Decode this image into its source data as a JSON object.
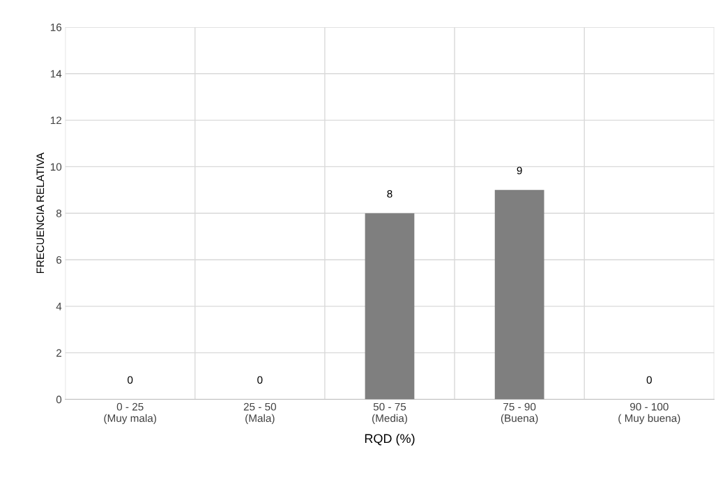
{
  "chart_data": {
    "type": "bar",
    "xlabel": "RQD (%)",
    "ylabel": "FRECUENCIA RELATIVA",
    "categories": [
      "0 - 25\n(Muy mala)",
      "25 - 50\n(Mala)",
      "50 - 75\n(Media)",
      "75 - 90\n(Buena)",
      "90 - 100\n( Muy buena)"
    ],
    "values": [
      0,
      0,
      8,
      9,
      0
    ],
    "color": "#7f7f7f",
    "ylim": [
      0,
      16
    ],
    "yticks": [
      0,
      2,
      4,
      6,
      8,
      10,
      12,
      14,
      16
    ],
    "grid": true,
    "data_labels": true
  }
}
